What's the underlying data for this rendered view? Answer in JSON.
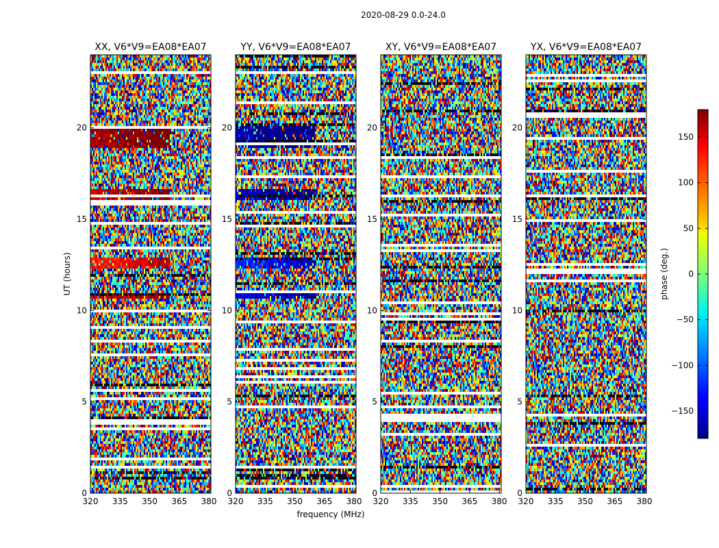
{
  "chart_data": {
    "type": "heatmap",
    "title": "2020-08-29 0.0-24.0",
    "xlabel": "frequency (MHz)",
    "ylabel": "UT (hours)",
    "xlim": [
      320,
      381
    ],
    "ylim": [
      0,
      24
    ],
    "xticks": [
      320,
      335,
      350,
      365,
      380
    ],
    "yticks": [
      0,
      5,
      10,
      15,
      20
    ],
    "panels": [
      {
        "name": "xx",
        "title": "XX, V6*V9=EA08*EA07",
        "coherent_sign": -1
      },
      {
        "name": "yy",
        "title": "YY, V6*V9=EA08*EA07",
        "coherent_sign": 1
      },
      {
        "name": "xy",
        "title": "XY, V6*V9=EA08*EA07",
        "coherent_sign": 0
      },
      {
        "name": "yx",
        "title": "YX, V6*V9=EA08*EA07",
        "coherent_sign": 0
      }
    ],
    "coherent_bands_hours": [
      {
        "from": 18.9,
        "to": 20.1,
        "phase": -160
      },
      {
        "from": 16.0,
        "to": 16.6,
        "phase": -150
      },
      {
        "from": 12.3,
        "to": 12.9,
        "phase": -120
      },
      {
        "from": 10.6,
        "to": 10.9,
        "phase": -140
      }
    ],
    "colorbar": {
      "label": "phase (deg.)",
      "range": [
        -180,
        180
      ],
      "ticks": [
        -150,
        -100,
        -50,
        0,
        50,
        100,
        150
      ],
      "tick_labels": [
        "−150",
        "−100",
        "−50",
        "0",
        "50",
        "100",
        "150"
      ],
      "colormap": "jet"
    }
  }
}
